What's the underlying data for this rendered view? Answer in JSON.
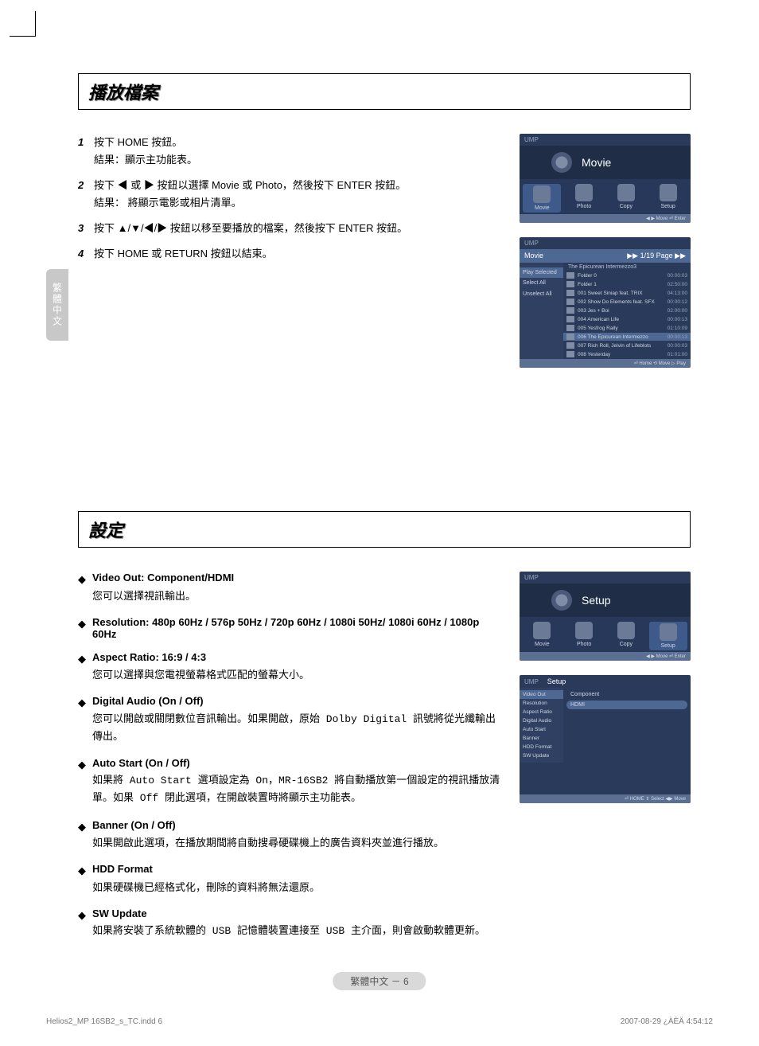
{
  "sideTab": "繁體中文",
  "section1": {
    "title": "播放檔案",
    "steps": [
      {
        "num": "1",
        "text": "按下 HOME 按鈕。",
        "sub": "結果：顯示主功能表。"
      },
      {
        "num": "2",
        "text": "按下 ◀ 或 ▶ 按鈕以選擇 Movie 或 Photo，然後按下 ENTER 按鈕。",
        "sub": "結果：  將顯示電影或相片清單。"
      },
      {
        "num": "3",
        "text": "按下 ▲/▼/◀/▶ 按鈕以移至要播放的檔案，然後按下 ENTER 按鈕。",
        "sub": ""
      },
      {
        "num": "4",
        "text": "按下 HOME 或 RETURN 按鈕以結束。",
        "sub": ""
      }
    ]
  },
  "section2": {
    "title": "設定",
    "items": [
      {
        "title": "Video Out: Component/HDMI",
        "desc": "您可以選擇視訊輸出。"
      },
      {
        "title": "Resolution: 480p 60Hz / 576p 50Hz / 720p 60Hz / 1080i 50Hz/ 1080i 60Hz / 1080p 60Hz",
        "desc": ""
      },
      {
        "title": "Aspect Ratio: 16:9 / 4:3",
        "desc": "您可以選擇與您電視螢幕格式匹配的螢幕大小。"
      },
      {
        "title": "Digital Audio (On / Off)",
        "desc": "您可以開啟或關閉數位音訊輸出。如果開啟，原始 Dolby Digital 訊號將從光纖輸出傳出。",
        "mono": true
      },
      {
        "title": "Auto Start (On / Off)",
        "desc": "如果將 Auto Start 選項設定為 On，MR-16SB2 將自動播放第一個設定的視訊播放清單。如果 Off 閉此選項，在開啟裝置時將顯示主功能表。",
        "mono": true
      },
      {
        "title": "Banner (On / Off)",
        "desc": "如果開啟此選項，在播放期間將自動搜尋硬碟機上的廣告資料夾並進行播放。"
      },
      {
        "title": "HDD Format",
        "desc": "如果硬碟機已經格式化，刪除的資料將無法還原。"
      },
      {
        "title": "SW Update",
        "desc": "如果將安裝了系統軟體的 USB 記憶體裝置連接至 USB 主介面，則會啟動軟體更新。",
        "mono": true
      }
    ]
  },
  "thumbs": {
    "ump": "UMP",
    "movie": {
      "title": "Movie",
      "cells": [
        "Movie",
        "Photo",
        "Copy",
        "Setup"
      ],
      "foot": "◀ ▶ Move    ⏎ Enter"
    },
    "movieList": {
      "heading": "Movie",
      "page": "▶▶ 1/19 Page ▶▶",
      "sub": "The Epicurean Intermezzo3",
      "side": [
        "Play Selected",
        "Select All",
        "Unselect All"
      ],
      "rows": [
        {
          "name": "Folder 0",
          "time": "00:00:03",
          "folder": true
        },
        {
          "name": "Folder 1",
          "time": "02:50:00",
          "folder": true
        },
        {
          "name": "001  Sweet Siniap feat. TRIX",
          "time": "04:13:00"
        },
        {
          "name": "002  Show Do Elements feat. SFX",
          "time": "00:00:12"
        },
        {
          "name": "003  Jes + Boi",
          "time": "02:00:00"
        },
        {
          "name": "004  American Life",
          "time": "00:00:13"
        },
        {
          "name": "005  Yesfrog Rally",
          "time": "01:10:09"
        },
        {
          "name": "006  The Epicurean Intermezzo",
          "time": "00:00:13",
          "sel": true
        },
        {
          "name": "007  Rich Roll, Jelvin of Lifeblots",
          "time": "00:00:03"
        },
        {
          "name": "008  Yesterday",
          "time": "01:01:00"
        }
      ],
      "foot": "⏎ Home    ⟲ Move    ▷ Play"
    },
    "setup": {
      "title": "Setup",
      "cells": [
        "Movie",
        "Photo",
        "Copy",
        "Setup"
      ],
      "foot": "◀ ▶ Move    ⏎ Enter"
    },
    "setupList": {
      "heading": "Setup",
      "side": [
        "Video Out",
        "Resolution",
        "Aspect Ratio",
        "Digital Audio",
        "Auto Start",
        "Banner",
        "HDD Format",
        "SW Update"
      ],
      "opts": [
        "Component",
        "HDMI"
      ],
      "foot": "⏎ HOME    ⇕ Select    ◀▶ Move"
    }
  },
  "footer": {
    "pager": "繁體中文 － 6",
    "left": "Helios2_MP 16SB2_s_TC.indd   6",
    "right": "2007-08-29   ¿ÀÈÄ 4:54:12"
  },
  "colors": {
    "thumbBg": "#2a3a5a",
    "thumbDark": "#1f2d47",
    "thumbSel": "#4e6894",
    "footerGray": "#d9d9d9"
  }
}
